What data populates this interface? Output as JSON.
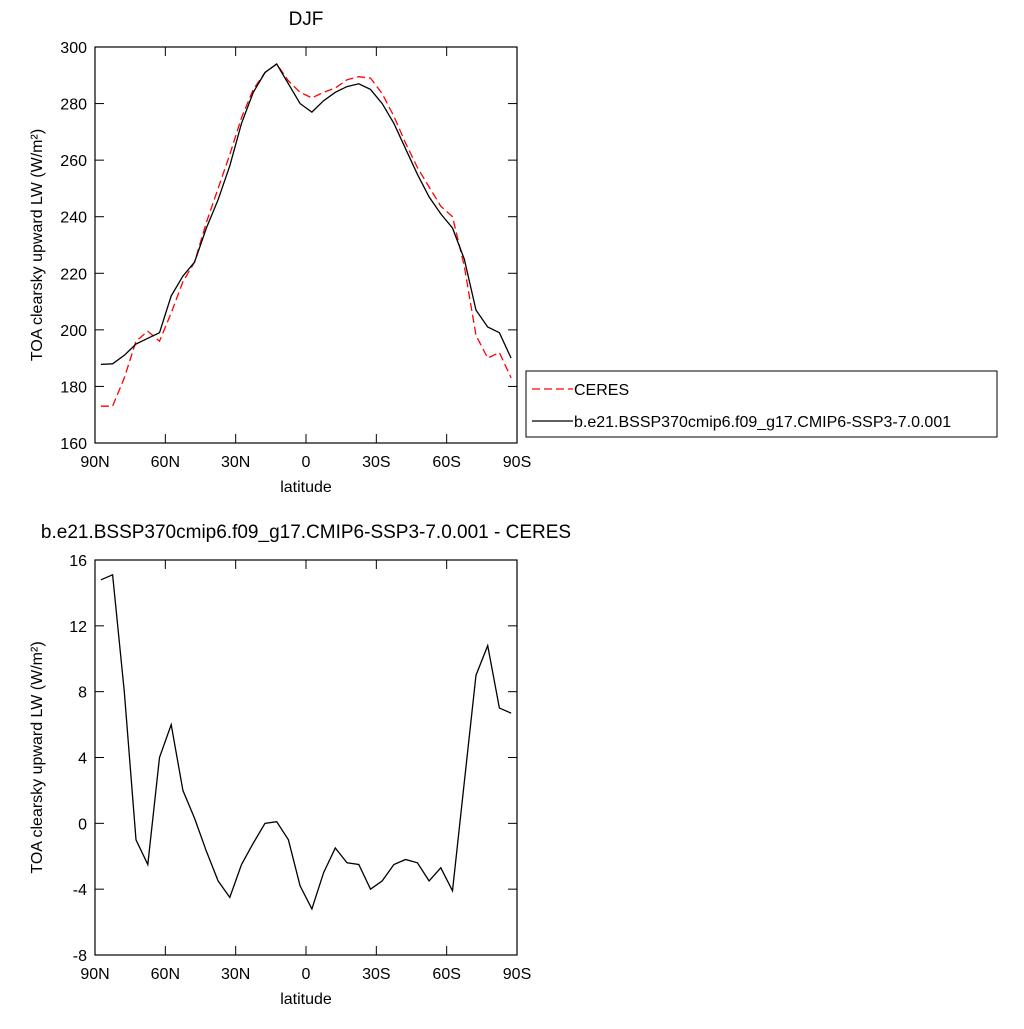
{
  "chart_data": [
    {
      "type": "line",
      "title": "DJF",
      "xlabel": "latitude",
      "ylabel": "TOA clearsky upward LW (W/m²)",
      "x": [
        87.5,
        82.5,
        77.5,
        72.5,
        67.5,
        62.5,
        57.5,
        52.5,
        47.5,
        42.5,
        37.5,
        32.5,
        27.5,
        22.5,
        17.5,
        12.5,
        7.5,
        2.5,
        -2.5,
        -7.5,
        -12.5,
        -17.5,
        -22.5,
        -27.5,
        -32.5,
        -37.5,
        -42.5,
        -47.5,
        -52.5,
        -57.5,
        -62.5,
        -67.5,
        -72.5,
        -77.5,
        -82.5,
        -87.5
      ],
      "series": [
        {
          "name": "CERES",
          "color": "#ff0000",
          "dashed": true,
          "values": [
            173,
            173,
            183,
            196,
            199.5,
            196,
            206,
            217,
            224,
            238,
            250,
            262,
            275,
            285,
            291,
            294,
            288,
            284,
            282,
            284,
            285.5,
            288.4,
            289.5,
            289,
            283.5,
            275.5,
            266,
            257.4,
            250.5,
            243.7,
            240,
            222.5,
            198,
            190,
            192,
            183
          ]
        },
        {
          "name": "b.e21.BSSP370cmip6.f09_g17.CMIP6-SSP3-7.0.001",
          "color": "#000000",
          "dashed": false,
          "values": [
            187.8,
            188,
            191,
            195,
            197,
            199,
            212,
            219,
            224,
            236,
            246,
            258,
            273,
            284,
            291,
            294,
            287,
            280,
            277,
            281,
            284,
            286,
            287,
            285,
            280,
            273,
            264,
            255,
            247,
            241,
            236,
            225,
            207,
            201,
            199,
            190
          ]
        }
      ],
      "xlim": [
        90,
        -90
      ],
      "ylim": [
        160,
        300
      ],
      "xticks": [
        {
          "value": 90,
          "label": "90N"
        },
        {
          "value": 60,
          "label": "60N"
        },
        {
          "value": 30,
          "label": "30N"
        },
        0,
        {
          "value": -30,
          "label": "30S"
        },
        {
          "value": -60,
          "label": "60S"
        },
        {
          "value": -90,
          "label": "90S"
        }
      ],
      "yticks": [
        160,
        180,
        200,
        220,
        240,
        260,
        280,
        300
      ],
      "legend": "right"
    },
    {
      "type": "line",
      "title": "b.e21.BSSP370cmip6.f09_g17.CMIP6-SSP3-7.0.001 - CERES",
      "xlabel": "latitude",
      "ylabel": "TOA clearsky upward LW (W/m²)",
      "x": [
        87.5,
        82.5,
        77.5,
        72.5,
        67.5,
        62.5,
        57.5,
        52.5,
        47.5,
        42.5,
        37.5,
        32.5,
        27.5,
        22.5,
        17.5,
        12.5,
        7.5,
        2.5,
        -2.5,
        -7.5,
        -12.5,
        -17.5,
        -22.5,
        -27.5,
        -32.5,
        -37.5,
        -42.5,
        -47.5,
        -52.5,
        -57.5,
        -62.5,
        -67.5,
        -72.5,
        -77.5,
        -82.5,
        -87.5
      ],
      "values": [
        14.8,
        15.1,
        8,
        -1,
        -2.5,
        4,
        6,
        2,
        0.3,
        -1.7,
        -3.5,
        -4.5,
        -2.5,
        -1.2,
        0,
        0.1,
        -1,
        -3.8,
        -5.2,
        -3,
        -1.5,
        -2.4,
        -2.5,
        -4,
        -3.5,
        -2.5,
        -2.2,
        -2.4,
        -3.5,
        -2.7,
        -4.1,
        2.5,
        9,
        10.8,
        7,
        6.7
      ],
      "color": "#000000",
      "xlim": [
        90,
        -90
      ],
      "ylim": [
        -8,
        16
      ],
      "xticks": [
        {
          "value": 90,
          "label": "90N"
        },
        {
          "value": 60,
          "label": "60N"
        },
        {
          "value": 30,
          "label": "30N"
        },
        0,
        {
          "value": -30,
          "label": "30S"
        },
        {
          "value": -60,
          "label": "60S"
        },
        {
          "value": -90,
          "label": "90S"
        }
      ],
      "yticks": [
        -8,
        -4,
        0,
        4,
        8,
        12,
        16
      ]
    }
  ]
}
